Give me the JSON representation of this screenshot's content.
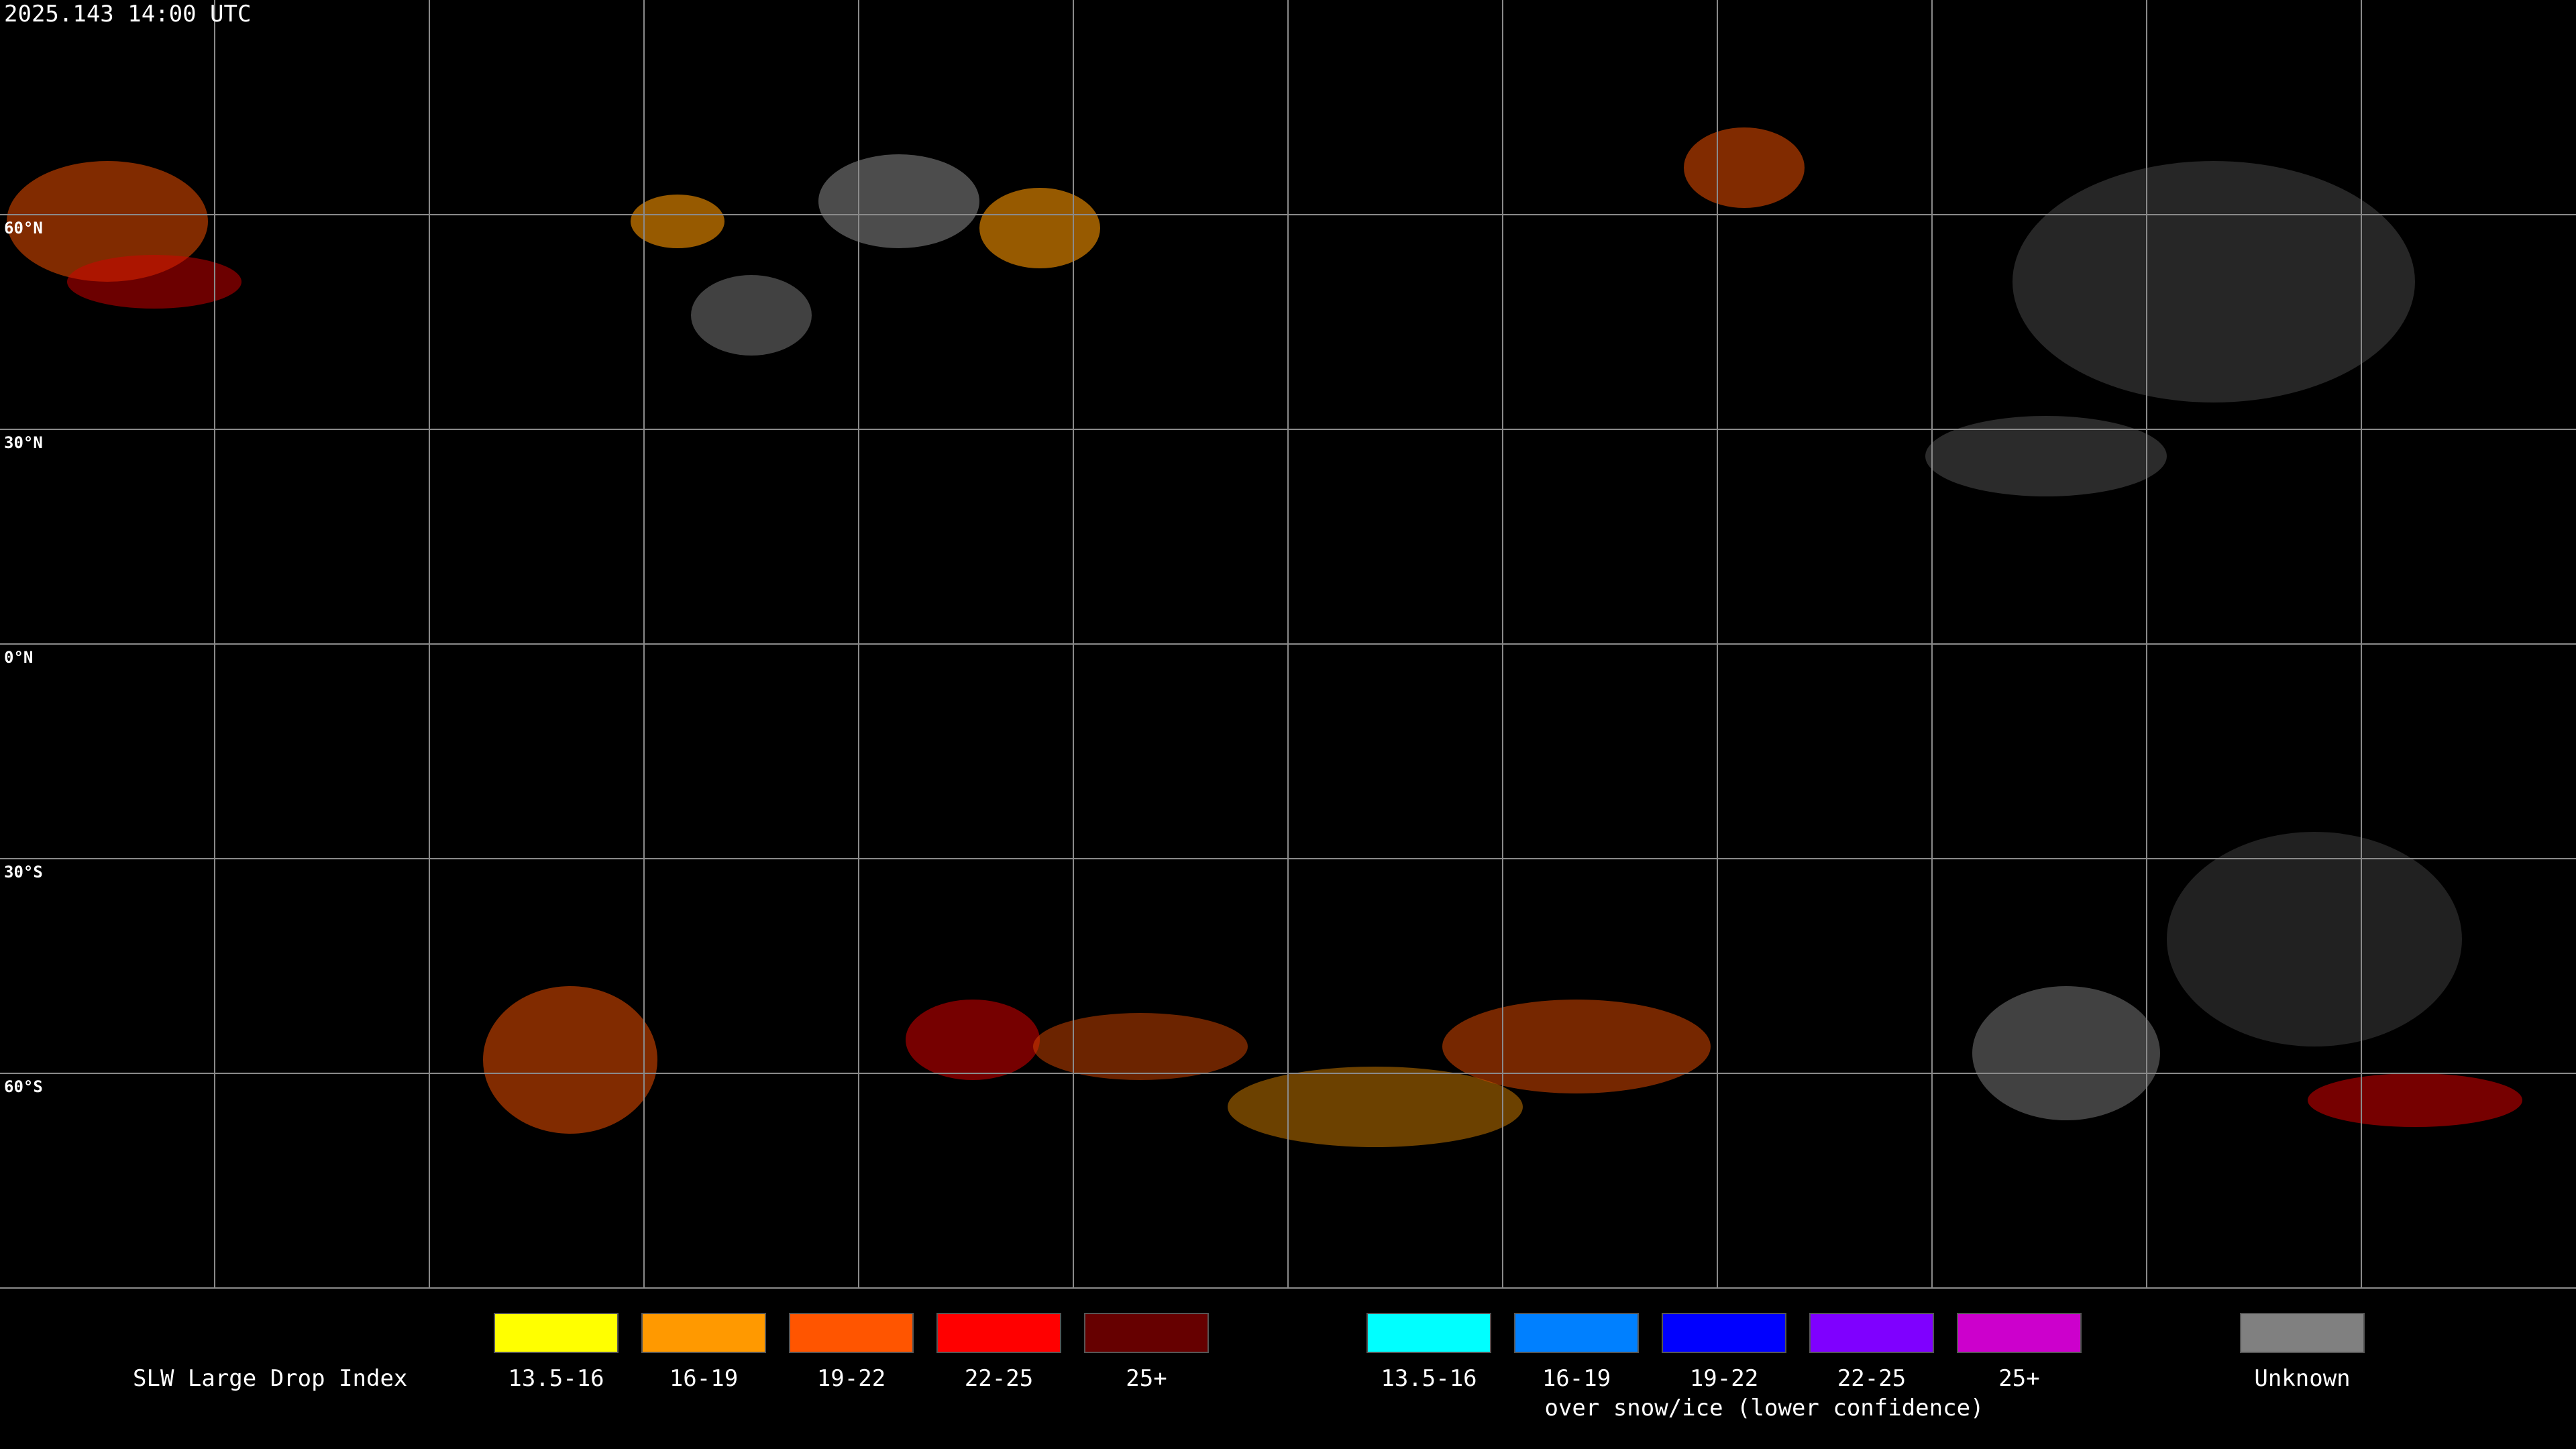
{
  "timestamp": "2025.143 14:00 UTC",
  "map": {
    "latitude_labels": [
      "60°N",
      "30°N",
      "0°N",
      "30°S",
      "60°S"
    ]
  },
  "legend": {
    "title": "SLW Large Drop Index",
    "groups": [
      {
        "items": [
          {
            "label": "13.5-16",
            "color": "#ffff00"
          },
          {
            "label": "16-19",
            "color": "#ff9900"
          },
          {
            "label": "19-22",
            "color": "#ff5500"
          },
          {
            "label": "22-25",
            "color": "#ff0000"
          },
          {
            "label": "25+",
            "color": "#660000"
          }
        ]
      },
      {
        "caption": "over snow/ice (lower confidence)",
        "items": [
          {
            "label": "13.5-16",
            "color": "#00ffff"
          },
          {
            "label": "16-19",
            "color": "#0080ff"
          },
          {
            "label": "19-22",
            "color": "#0000ff"
          },
          {
            "label": "22-25",
            "color": "#7f00ff"
          },
          {
            "label": "25+",
            "color": "#cc00cc"
          }
        ]
      },
      {
        "items": [
          {
            "label": "Unknown",
            "color": "#808080"
          }
        ]
      }
    ]
  }
}
